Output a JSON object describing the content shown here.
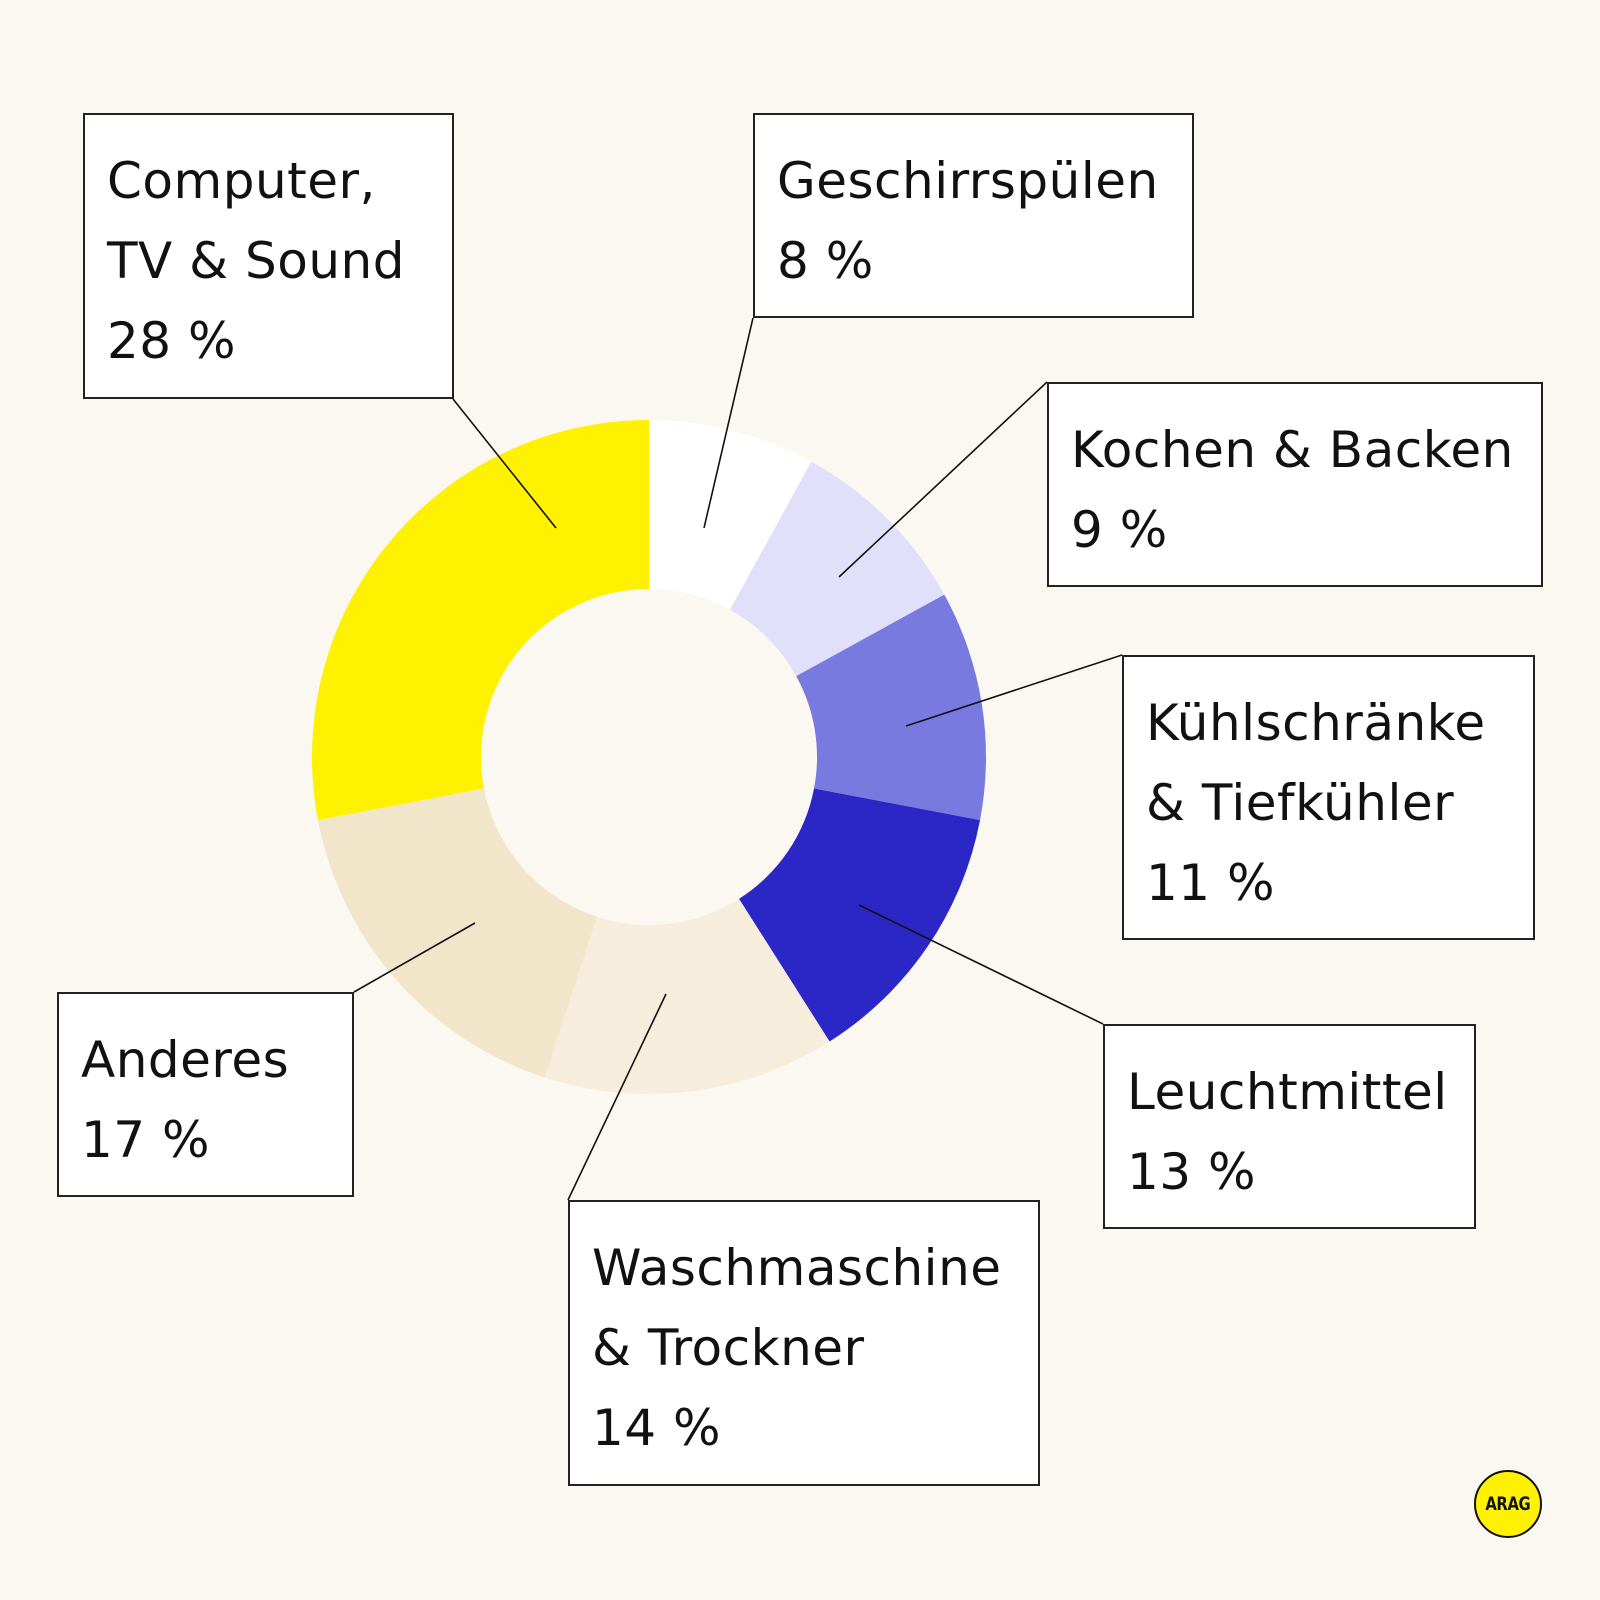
{
  "chart_data": {
    "type": "donut",
    "segments": [
      {
        "id": "geschirr",
        "lines": [
          "Geschirrspülen"
        ],
        "value": 8,
        "value_label": "8 %",
        "color": "#ffffff"
      },
      {
        "id": "kochen",
        "lines": [
          "Kochen & Backen"
        ],
        "value": 9,
        "value_label": "9 %",
        "color": "#e0e0fa"
      },
      {
        "id": "kuehl",
        "lines": [
          "Kühlschränke",
          "& Tiefkühler"
        ],
        "value": 11,
        "value_label": "11 %",
        "color": "#787adf"
      },
      {
        "id": "leucht",
        "lines": [
          "Leuchtmittel"
        ],
        "value": 13,
        "value_label": "13 %",
        "color": "#2a27c6"
      },
      {
        "id": "wasch",
        "lines": [
          "Waschmaschine",
          "& Trockner"
        ],
        "value": 14,
        "value_label": "14 %",
        "color": "#f6eddc"
      },
      {
        "id": "anderes",
        "lines": [
          "Anderes"
        ],
        "value": 17,
        "value_label": "17 %",
        "color": "#f2e6ca"
      },
      {
        "id": "computer",
        "lines": [
          "Computer,",
          "TV & Sound"
        ],
        "value": 28,
        "value_label": "28 %",
        "color": "#fff200"
      }
    ],
    "start_angle_deg": 0,
    "direction": "clockwise"
  },
  "logo": {
    "text": "ARAG",
    "color": "#fff200"
  },
  "colors": {
    "background": "#fbf8f2",
    "border": "#222222"
  }
}
